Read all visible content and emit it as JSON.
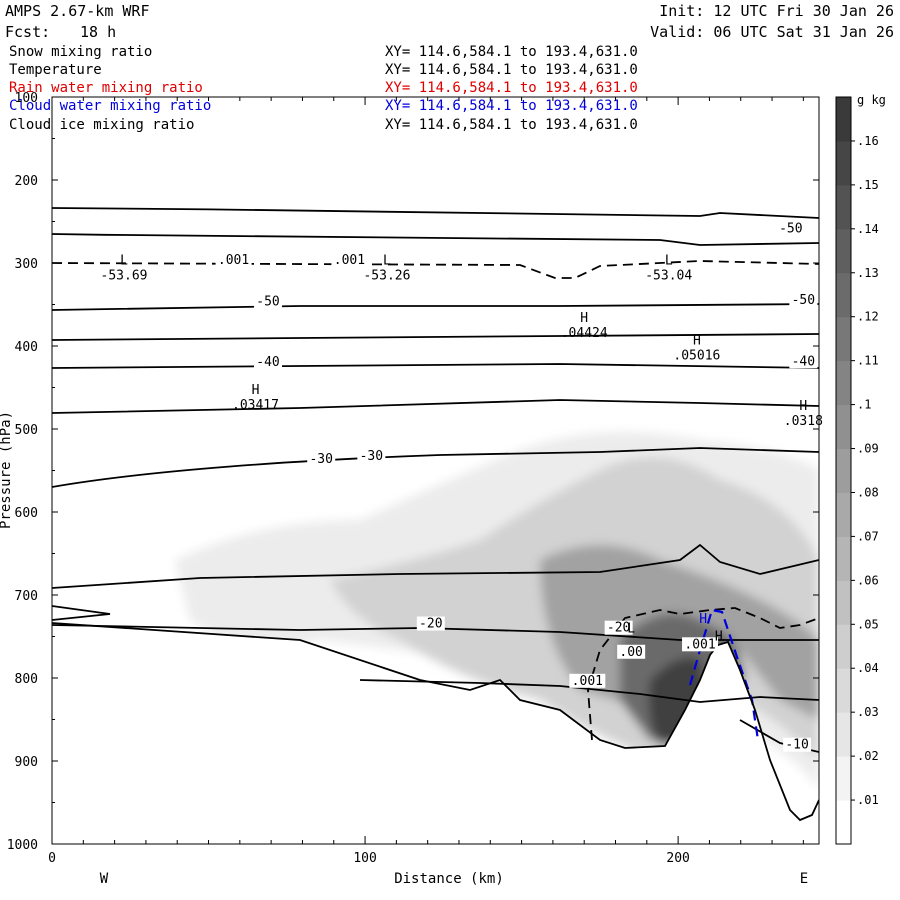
{
  "header": {
    "model": "AMPS 2.67-km WRF",
    "init": "Init: 12 UTC Fri 30 Jan 26",
    "fcst_label": "Fcst:",
    "fcst_value": "18 h",
    "valid": "Valid: 06 UTC Sat 31 Jan 26"
  },
  "legend": [
    {
      "name": "Snow mixing ratio",
      "xy": "XY= 114.6,584.1 to 193.4,631.0",
      "color": "#000000"
    },
    {
      "name": "Temperature",
      "xy": "XY= 114.6,584.1 to 193.4,631.0",
      "color": "#000000"
    },
    {
      "name": "Rain water mixing ratio",
      "xy": "XY= 114.6,584.1 to 193.4,631.0",
      "color": "#e00000"
    },
    {
      "name": "Cloud water mixing ratio",
      "xy": "XY= 114.6,584.1 to 193.4,631.0",
      "color": "#0000e0"
    },
    {
      "name": "Cloud ice mixing ratio",
      "xy": "XY= 114.6,584.1 to 193.4,631.0",
      "color": "#000000"
    }
  ],
  "chart_data": {
    "type": "contour-cross-section",
    "xlabel": "Distance (km)",
    "ylabel": "Pressure (hPa)",
    "xlim": [
      0,
      245
    ],
    "ylim": [
      100,
      1000
    ],
    "x_ticks": [
      0,
      100,
      200
    ],
    "y_ticks": [
      100,
      200,
      300,
      400,
      500,
      600,
      700,
      800,
      900,
      1000
    ],
    "left_end_label": "W",
    "right_end_label": "E",
    "colorbar": {
      "unit": "g kg",
      "unit_exp": "-1",
      "ticks": [
        ".01",
        ".02",
        ".03",
        ".04",
        ".05",
        ".06",
        ".07",
        ".08",
        ".09",
        ".1",
        ".11",
        ".12",
        ".13",
        ".14",
        ".15",
        ".16"
      ],
      "range": [
        0,
        0.17
      ]
    },
    "isotherm_labels": [
      {
        "text": "-50",
        "x": 69,
        "p": 350
      },
      {
        "text": "-50",
        "x": 236,
        "p": 262
      },
      {
        "text": "-50",
        "x": 240,
        "p": 348
      },
      {
        "text": "-40",
        "x": 69,
        "p": 423
      },
      {
        "text": "-40",
        "x": 240,
        "p": 422
      },
      {
        "text": "-30",
        "x": 86,
        "p": 540
      },
      {
        "text": "-30",
        "x": 102,
        "p": 536
      },
      {
        "text": "-20",
        "x": 121,
        "p": 738
      },
      {
        "text": "-20",
        "x": 181,
        "p": 743
      },
      {
        "text": "-10",
        "x": 238,
        "p": 884
      }
    ],
    "mixing_labels": [
      {
        "text": ".001",
        "x": 58,
        "p": 300
      },
      {
        "text": ".001",
        "x": 95,
        "p": 300
      },
      {
        "text": ".001",
        "x": 171,
        "p": 807
      },
      {
        "text": ".00",
        "x": 185,
        "p": 772
      },
      {
        "text": ".001",
        "x": 207,
        "p": 763
      }
    ],
    "extrema": [
      {
        "kind": "L",
        "value": "-53.69",
        "x": 23,
        "p": 302
      },
      {
        "kind": "L",
        "value": "-53.26",
        "x": 107,
        "p": 302
      },
      {
        "kind": "L",
        "value": "-53.04",
        "x": 197,
        "p": 302
      },
      {
        "kind": "H",
        "value": ".04424",
        "x": 170,
        "p": 371
      },
      {
        "kind": "H",
        "value": ".05016",
        "x": 206,
        "p": 398
      },
      {
        "kind": "H",
        "value": ".03417",
        "x": 65,
        "p": 458
      },
      {
        "kind": "H",
        "value": ".0318",
        "x": 240,
        "p": 477
      },
      {
        "kind": "L",
        "value": "",
        "x": 185,
        "p": 745
      },
      {
        "kind": "H",
        "value": "",
        "x": 208,
        "p": 734
      },
      {
        "kind": "H",
        "value": "",
        "x": 213,
        "p": 755
      }
    ]
  }
}
